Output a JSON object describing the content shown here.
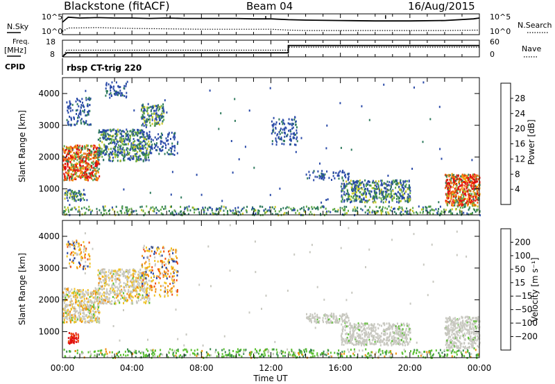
{
  "header": {
    "station": "Blackstone (fitACF)",
    "beam": "Beam 04",
    "date": "16/Aug/2015"
  },
  "labels": {
    "nsky": "N.Sky",
    "nsearch": "N.Search",
    "freq_line1": "Freq.",
    "freq_line2": "[MHz]",
    "nave": "Nave",
    "cpid": "CPID",
    "cpid_value": "rbsp CT-trig 220"
  },
  "colors": {
    "power": [
      "#0020ff",
      "#2a4aa8",
      "#2e7a5c",
      "#5fa848",
      "#c8c820",
      "#f0a010",
      "#f06010",
      "#e01010"
    ],
    "velocity": [
      "#e01010",
      "#f05010",
      "#f09010",
      "#f0c020",
      "#c8c8c0",
      "#5ac030",
      "#3a8a50",
      "#2040a0",
      "#2020c0"
    ],
    "ground_scatter": "#c8c8c0"
  },
  "chart_data": [
    {
      "type": "line",
      "panel": "noise",
      "series": [
        {
          "name": "N.Sky",
          "style": "solid",
          "x": [
            "00:00",
            "00:20",
            "01:00",
            "02:00",
            "03:00",
            "04:00",
            "05:00",
            "06:00",
            "07:00",
            "08:00",
            "09:00",
            "10:00",
            "11:00",
            "12:00",
            "13:00",
            "14:00",
            "16:00",
            "18:00",
            "20:00",
            "22:00",
            "23:40",
            "24:00"
          ],
          "values": [
            3.0,
            4.2,
            4.0,
            4.1,
            4.0,
            4.0,
            3.9,
            4.0,
            3.9,
            3.9,
            3.9,
            3.9,
            3.8,
            3.8,
            3.6,
            3.5,
            3.4,
            3.3,
            3.3,
            3.4,
            3.8,
            4.0
          ]
        },
        {
          "name": "N.Search",
          "style": "dotted",
          "x": [
            "00:00",
            "00:20",
            "02:00",
            "04:00",
            "06:00",
            "08:00",
            "10:00",
            "12:00",
            "13:00",
            "14:00",
            "16:00",
            "18:00",
            "20:00",
            "22:00",
            "24:00"
          ],
          "values": [
            0.8,
            1.6,
            1.7,
            1.5,
            1.4,
            1.3,
            1.3,
            1.3,
            1.1,
            1.0,
            1.0,
            1.0,
            1.0,
            1.0,
            1.1
          ]
        }
      ],
      "y_tick_labels": [
        "10^5",
        "10^0"
      ],
      "xlim": [
        "00:00",
        "24:00"
      ]
    },
    {
      "type": "line",
      "panel": "frequency",
      "series": [
        {
          "name": "Freq.",
          "style": "solid",
          "x": [
            "00:00",
            "00:15",
            "13:00",
            "13:00",
            "24:00"
          ],
          "values": [
            8,
            10.4,
            10.4,
            14.8,
            14.8
          ]
        },
        {
          "name": "Nave",
          "style": "dotted",
          "x": [
            "00:00",
            "00:15",
            "13:00",
            "13:00",
            "24:00"
          ],
          "values": [
            0,
            24,
            24,
            35,
            35
          ]
        }
      ],
      "y_left_ticks": [
        18,
        8
      ],
      "y_right_ticks": [
        60,
        0
      ],
      "xlim": [
        "00:00",
        "24:00"
      ]
    },
    {
      "type": "heatmap",
      "panel": "power",
      "ylabel": "Slant Range [km]",
      "y_ticks": [
        1000,
        2000,
        3000,
        4000
      ],
      "ylim": [
        180,
        4500
      ],
      "xlim": [
        "00:00",
        "24:00"
      ],
      "colorbar_label": "Power [dB]",
      "colorbar_ticks": [
        4,
        8,
        12,
        16,
        20,
        24,
        28
      ],
      "scatter_regions": [
        {
          "t0": 0.0,
          "t1": 2.1,
          "r0": 1300,
          "r1": 2400,
          "level": "strong"
        },
        {
          "t0": 0.1,
          "t1": 1.3,
          "r0": 650,
          "r1": 1000,
          "level": "medium"
        },
        {
          "t0": 0.2,
          "t1": 1.6,
          "r0": 3000,
          "r1": 3900,
          "level": "weak"
        },
        {
          "t0": 2.0,
          "t1": 5.0,
          "r0": 1900,
          "r1": 2900,
          "level": "medium"
        },
        {
          "t0": 2.4,
          "t1": 3.8,
          "r0": 3900,
          "r1": 4400,
          "level": "weak"
        },
        {
          "t0": 4.5,
          "t1": 5.8,
          "r0": 3000,
          "r1": 3700,
          "level": "medium"
        },
        {
          "t0": 5.0,
          "t1": 6.6,
          "r0": 2100,
          "r1": 2800,
          "level": "weak"
        },
        {
          "t0": 12.0,
          "t1": 13.5,
          "r0": 2400,
          "r1": 3300,
          "level": "weak"
        },
        {
          "t0": 14.0,
          "t1": 16.5,
          "r0": 1300,
          "r1": 1600,
          "level": "weak"
        },
        {
          "t0": 16.0,
          "t1": 20.0,
          "r0": 600,
          "r1": 1300,
          "level": "medium"
        },
        {
          "t0": 22.0,
          "t1": 24.0,
          "r0": 500,
          "r1": 1500,
          "level": "strong"
        },
        {
          "t0": 0.0,
          "t1": 24.0,
          "r0": 200,
          "r1": 480,
          "level": "near-range"
        }
      ]
    },
    {
      "type": "heatmap",
      "panel": "velocity",
      "ylabel": "Slant Range [km]",
      "xlabel": "Time UT",
      "x_tick_labels": [
        "00:00",
        "04:00",
        "08:00",
        "12:00",
        "16:00",
        "20:00",
        "00:00"
      ],
      "y_ticks": [
        1000,
        2000,
        3000,
        4000
      ],
      "ylim": [
        180,
        4500
      ],
      "xlim": [
        "00:00",
        "24:00"
      ],
      "colorbar_label": "Velocity [m s⁻¹]",
      "colorbar_ticks": [
        200,
        100,
        50,
        15,
        -15,
        -50,
        -100,
        -200
      ],
      "scatter_regions": [
        {
          "t0": 0.0,
          "t1": 2.1,
          "r0": 1300,
          "r1": 2400,
          "level": "ground-mixed"
        },
        {
          "t0": 0.3,
          "t1": 0.9,
          "r0": 650,
          "r1": 1000,
          "level": "negative"
        },
        {
          "t0": 0.2,
          "t1": 1.6,
          "r0": 3000,
          "r1": 3900,
          "level": "negative-weak"
        },
        {
          "t0": 2.0,
          "t1": 5.0,
          "r0": 1900,
          "r1": 3000,
          "level": "ground-mixed"
        },
        {
          "t0": 4.5,
          "t1": 6.6,
          "r0": 2100,
          "r1": 3700,
          "level": "negative-weak"
        },
        {
          "t0": 14.0,
          "t1": 16.5,
          "r0": 1300,
          "r1": 1600,
          "level": "ground"
        },
        {
          "t0": 16.0,
          "t1": 20.0,
          "r0": 600,
          "r1": 1300,
          "level": "ground"
        },
        {
          "t0": 22.0,
          "t1": 24.0,
          "r0": 500,
          "r1": 1500,
          "level": "ground"
        },
        {
          "t0": 0.0,
          "t1": 24.0,
          "r0": 200,
          "r1": 480,
          "level": "positive-small"
        }
      ]
    }
  ]
}
